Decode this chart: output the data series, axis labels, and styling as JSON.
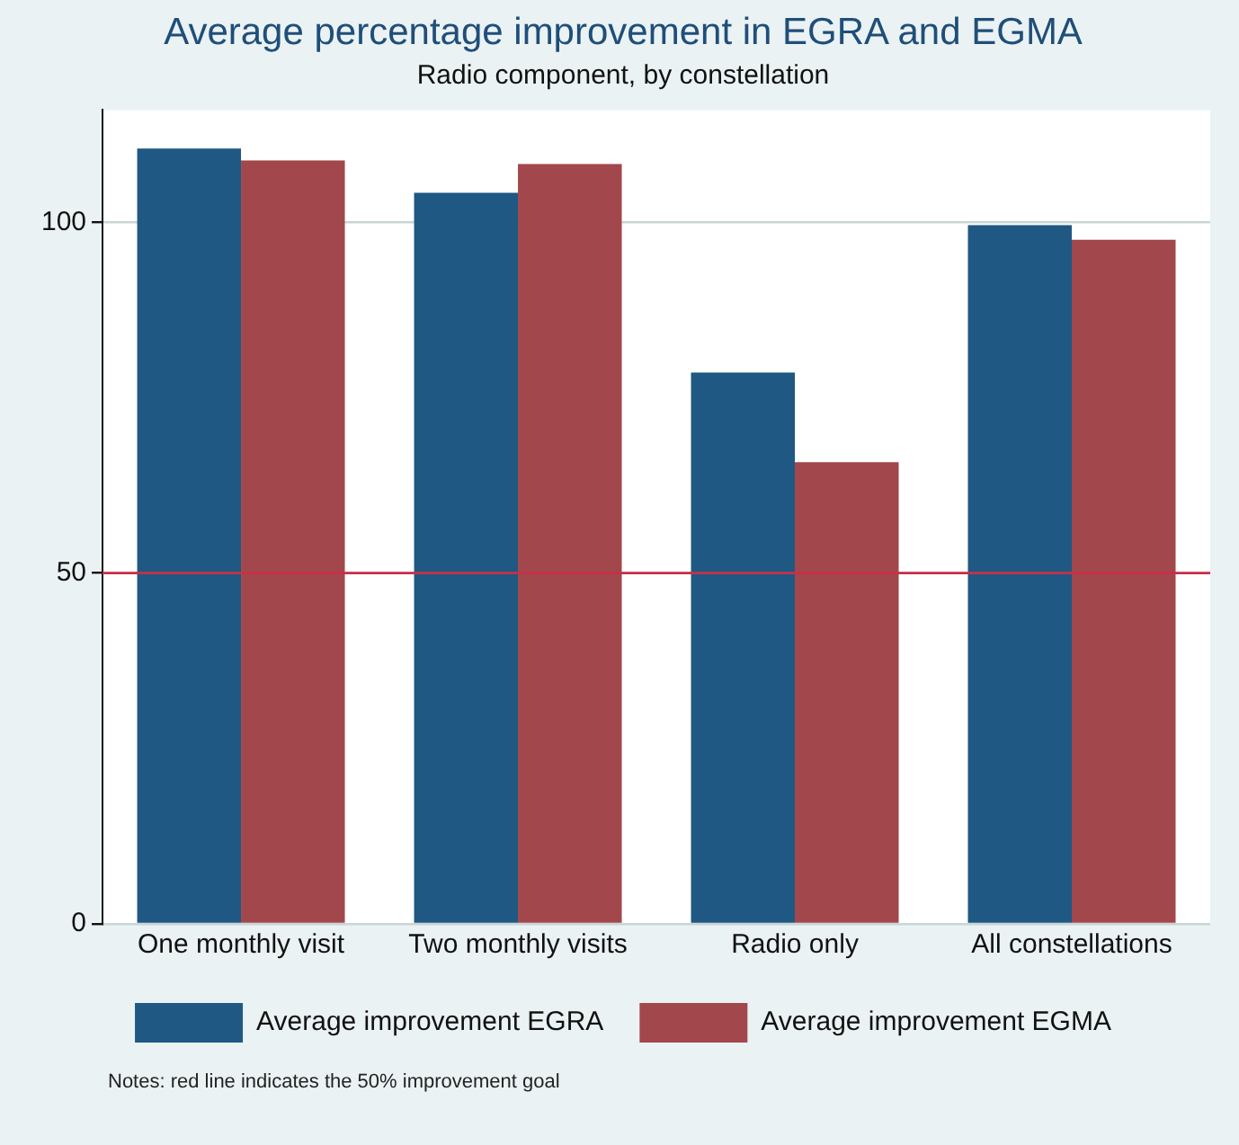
{
  "chart_data": {
    "type": "bar",
    "title": "Average percentage improvement in EGRA and EGMA",
    "subtitle": "Radio component, by constellation",
    "categories": [
      "One monthly visit",
      "Two monthly visits",
      "Radio only",
      "All constellations"
    ],
    "series": [
      {
        "name": "Average improvement EGRA",
        "color": "#1f5882",
        "values": [
          110.5,
          104.2,
          78.6,
          99.6
        ]
      },
      {
        "name": "Average improvement EGMA",
        "color": "#a2474b",
        "values": [
          108.8,
          108.3,
          65.8,
          97.5
        ]
      }
    ],
    "ylim": [
      0,
      116
    ],
    "yticks": [
      0,
      50,
      100
    ],
    "grid": "y",
    "legend": "bottom",
    "ref_lines": [
      {
        "axis": "y",
        "value": 50,
        "color": "#c8304a"
      }
    ],
    "annotations": [
      "Notes: red line indicates the 50% improvement goal"
    ]
  }
}
